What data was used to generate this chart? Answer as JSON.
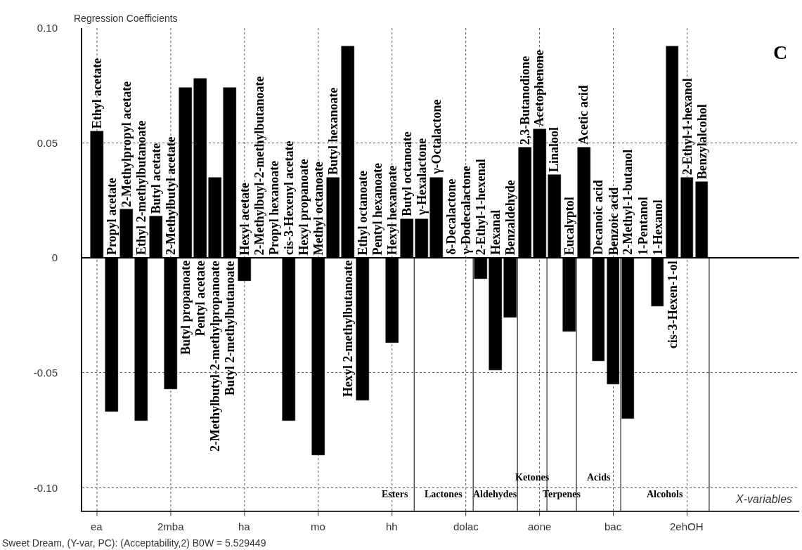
{
  "chart_data": {
    "type": "bar",
    "ylabel": "Regression Coefficients",
    "xlabel": "X-variables",
    "categories": [
      "Ethyl acetate",
      "Propyl acetate",
      "2-Methylpropyl acetate",
      "Ethyl 2-methylbutanoate",
      "Butyl acetate",
      "2-Methylbutyl acetate",
      "Butyl propanoate",
      "Pentyl acetate",
      "2-Methylbutyl-2-methylpropanoate",
      "Butyl 2-methylbutanoate",
      "Hexyl acetate",
      "2-Methylbuyl-2-methylbutanoate",
      "Propyl hexanoate",
      "cis-3-Hexenyl acetate",
      "Hexyl propanoate",
      "Methyl octanoate",
      "Butyl hexanoate",
      "Hexyl 2-methylbutanoate",
      "Ethyl octanoate",
      "Pentyl hexanoate",
      "Hexyl hexanoate",
      "Butyl octanoate",
      "γ-Hexalactone",
      "γ-Octalactone",
      "δ-Decalactone",
      "γ-Dodecalactone",
      "2-Ethyl-1-hexenal",
      "Hexanal",
      "Benzaldehyde",
      "2,3-Butanodione",
      "Acetophenone",
      "Linalool",
      "Eucalyptol",
      "Acetic acid",
      "Decanoic acid",
      "Benzoic acid",
      "2-Methyl-1-butanol",
      "1-Pentanol",
      "1-Hexanol",
      "cis-3-Hexen-1-ol",
      "2-Ethyl-1-hexanol",
      "Benzylalcohol"
    ],
    "values": [
      0.055,
      -0.067,
      0.021,
      -0.071,
      0.018,
      -0.057,
      0.074,
      0.078,
      0.035,
      0.074,
      -0.01,
      0,
      0,
      -0.071,
      0,
      -0.086,
      0.035,
      0.092,
      -0.062,
      0,
      -0.037,
      0.017,
      0.017,
      0.035,
      0,
      0,
      -0.009,
      -0.049,
      -0.026,
      0.048,
      0.056,
      0.036,
      -0.032,
      0.048,
      -0.045,
      -0.055,
      -0.07,
      0,
      -0.021,
      0.092,
      0.035,
      0.033
    ],
    "color": "#000000",
    "ylim": [
      -0.11,
      0.1
    ],
    "yticks": [
      {
        "value": -0.1,
        "label": "-0.10"
      },
      -0.05,
      0,
      0.05,
      {
        "value": 0.1,
        "label": "0.10"
      }
    ],
    "grid": true,
    "ref_lines": [
      {
        "axis": "x",
        "value": "Butyl octanoate",
        "label": "Esters",
        "color": "#000000"
      },
      {
        "axis": "x",
        "value": "γ-Dodecalactone",
        "label": "Lactones",
        "color": "#000000"
      },
      {
        "axis": "x",
        "value": "Benzaldehyde",
        "label": "Aldehydes",
        "color": "#000000"
      },
      {
        "axis": "x",
        "value": "Acetophenone",
        "label": "Ketones",
        "color": "#000000"
      },
      {
        "axis": "x",
        "value": "Eucalyptol",
        "label": "Terpenes",
        "color": "#000000"
      },
      {
        "axis": "x",
        "value": "Benzoic acid",
        "label": "Acids",
        "color": "#000000"
      },
      {
        "axis": "x",
        "value": "Benzylalcohol",
        "label": "Alcohols",
        "color": "#000000"
      }
    ],
    "annotations": [
      "C",
      "Sweet Dream, (Y-var, PC): (Acceptability,2) B0W = 5.529449",
      {
        "text": "ea",
        "x": "Ethyl acetate"
      },
      {
        "text": "2mba",
        "x": "2-Methylbutyl acetate"
      },
      {
        "text": "ha",
        "x": "Hexyl acetate"
      },
      {
        "text": "mo",
        "x": "Methyl octanoate"
      },
      {
        "text": "hh",
        "x": "Hexyl hexanoate"
      },
      {
        "text": "dolac",
        "x": "γ-Dodecalactone"
      },
      {
        "text": "aone",
        "x": "Acetophenone"
      },
      {
        "text": "bac",
        "x": "Benzoic acid"
      },
      {
        "text": "2ehOH",
        "x": "2-Ethyl-1-hexanol"
      }
    ]
  }
}
